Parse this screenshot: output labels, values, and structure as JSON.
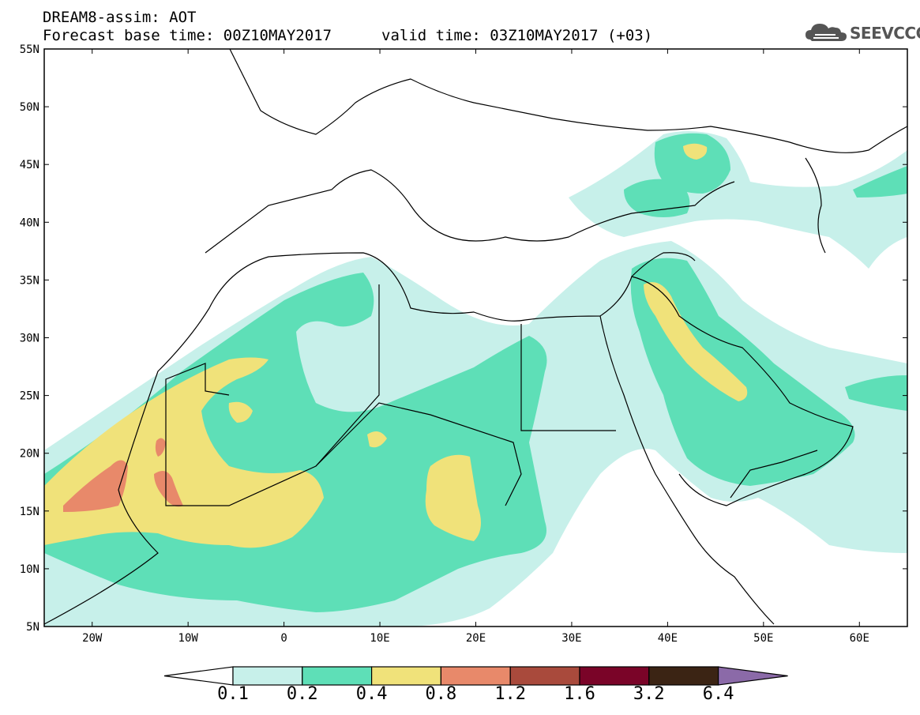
{
  "header": {
    "line1": "DREAM8-assim: AOT",
    "line2": "Forecast base time: 00Z10MAY2017",
    "valid": "valid time: 03Z10MAY2017 (+03)",
    "logo_text": "SEEVCCC",
    "logo_icon": "cloud-icon"
  },
  "axes": {
    "lat_labels": [
      "55N",
      "50N",
      "45N",
      "40N",
      "35N",
      "30N",
      "25N",
      "20N",
      "15N",
      "10N",
      "5N"
    ],
    "lon_labels": [
      "20W",
      "10W",
      "0",
      "10E",
      "20E",
      "30E",
      "40E",
      "50E",
      "60E"
    ]
  },
  "legend": {
    "thresholds": [
      "0.1",
      "0.2",
      "0.4",
      "0.8",
      "1.2",
      "1.6",
      "3.2",
      "6.4"
    ],
    "colors": [
      "#ffffff",
      "#c7f0ea",
      "#5edfb7",
      "#f0e27a",
      "#e8896a",
      "#a94a3c",
      "#7a0428",
      "#3b2414",
      "#8b6aa8"
    ]
  },
  "map": {
    "region": "North Africa, Europe and Middle East",
    "lon_range": [
      -25,
      65
    ],
    "lat_range": [
      5,
      55
    ],
    "fill_colors": {
      "level1": "#c7f0ea",
      "level2": "#5edfb7",
      "level3": "#f0e27a",
      "level4": "#e8896a"
    }
  }
}
